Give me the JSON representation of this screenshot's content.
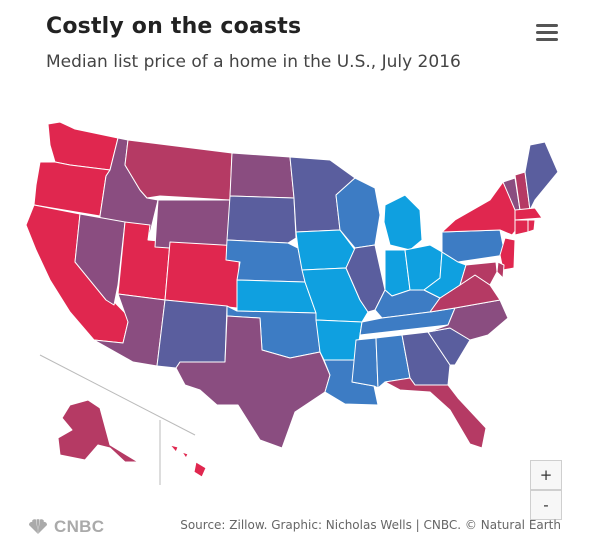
{
  "header": {
    "title": "Costly on the coasts",
    "subtitle": "Median list price of a home in the U.S., July 2016"
  },
  "menu_icon": "hamburger-menu-icon",
  "zoom": {
    "in_label": "+",
    "out_label": "-"
  },
  "footer": {
    "logo_text": "CNBC",
    "source": "Source: Zillow. Graphic: Nicholas Wells | CNBC. © Natural Earth"
  },
  "colors": {
    "highest": "#e0274f",
    "high": "#b53a64",
    "mid_high": "#8a4d80",
    "mid": "#5a5e9e",
    "mid_low": "#3d7cc4",
    "lowest": "#0fa0e0"
  },
  "states": [
    {
      "name": "Washington",
      "level": "highest"
    },
    {
      "name": "Oregon",
      "level": "highest"
    },
    {
      "name": "California",
      "level": "highest"
    },
    {
      "name": "Idaho",
      "level": "mid_high"
    },
    {
      "name": "Nevada",
      "level": "mid_high"
    },
    {
      "name": "Utah",
      "level": "highest"
    },
    {
      "name": "Arizona",
      "level": "mid_high"
    },
    {
      "name": "Montana",
      "level": "high"
    },
    {
      "name": "Wyoming",
      "level": "mid_high"
    },
    {
      "name": "Colorado",
      "level": "highest"
    },
    {
      "name": "New Mexico",
      "level": "mid"
    },
    {
      "name": "North Dakota",
      "level": "mid_high"
    },
    {
      "name": "South Dakota",
      "level": "mid"
    },
    {
      "name": "Nebraska",
      "level": "mid_low"
    },
    {
      "name": "Kansas",
      "level": "lowest"
    },
    {
      "name": "Oklahoma",
      "level": "mid_low"
    },
    {
      "name": "Texas",
      "level": "mid_high"
    },
    {
      "name": "Minnesota",
      "level": "mid"
    },
    {
      "name": "Iowa",
      "level": "lowest"
    },
    {
      "name": "Missouri",
      "level": "lowest"
    },
    {
      "name": "Arkansas",
      "level": "lowest"
    },
    {
      "name": "Louisiana",
      "level": "mid_low"
    },
    {
      "name": "Wisconsin",
      "level": "mid_low"
    },
    {
      "name": "Illinois",
      "level": "mid"
    },
    {
      "name": "Michigan",
      "level": "lowest"
    },
    {
      "name": "Indiana",
      "level": "lowest"
    },
    {
      "name": "Ohio",
      "level": "lowest"
    },
    {
      "name": "Kentucky",
      "level": "mid_low"
    },
    {
      "name": "Tennessee",
      "level": "mid_low"
    },
    {
      "name": "Mississippi",
      "level": "mid_low"
    },
    {
      "name": "Alabama",
      "level": "mid_low"
    },
    {
      "name": "Georgia",
      "level": "mid"
    },
    {
      "name": "Florida",
      "level": "high"
    },
    {
      "name": "South Carolina",
      "level": "mid"
    },
    {
      "name": "North Carolina",
      "level": "mid_high"
    },
    {
      "name": "Virginia",
      "level": "high"
    },
    {
      "name": "West Virginia",
      "level": "lowest"
    },
    {
      "name": "Pennsylvania",
      "level": "mid_low"
    },
    {
      "name": "New York",
      "level": "highest"
    },
    {
      "name": "Vermont",
      "level": "mid_high"
    },
    {
      "name": "New Hampshire",
      "level": "high"
    },
    {
      "name": "Maine",
      "level": "mid"
    },
    {
      "name": "Massachusetts",
      "level": "highest"
    },
    {
      "name": "Connecticut",
      "level": "highest"
    },
    {
      "name": "Rhode Island",
      "level": "highest"
    },
    {
      "name": "New Jersey",
      "level": "highest"
    },
    {
      "name": "Delaware",
      "level": "high"
    },
    {
      "name": "Maryland",
      "level": "high"
    },
    {
      "name": "Alaska",
      "level": "high"
    },
    {
      "name": "Hawaii",
      "level": "highest"
    }
  ]
}
